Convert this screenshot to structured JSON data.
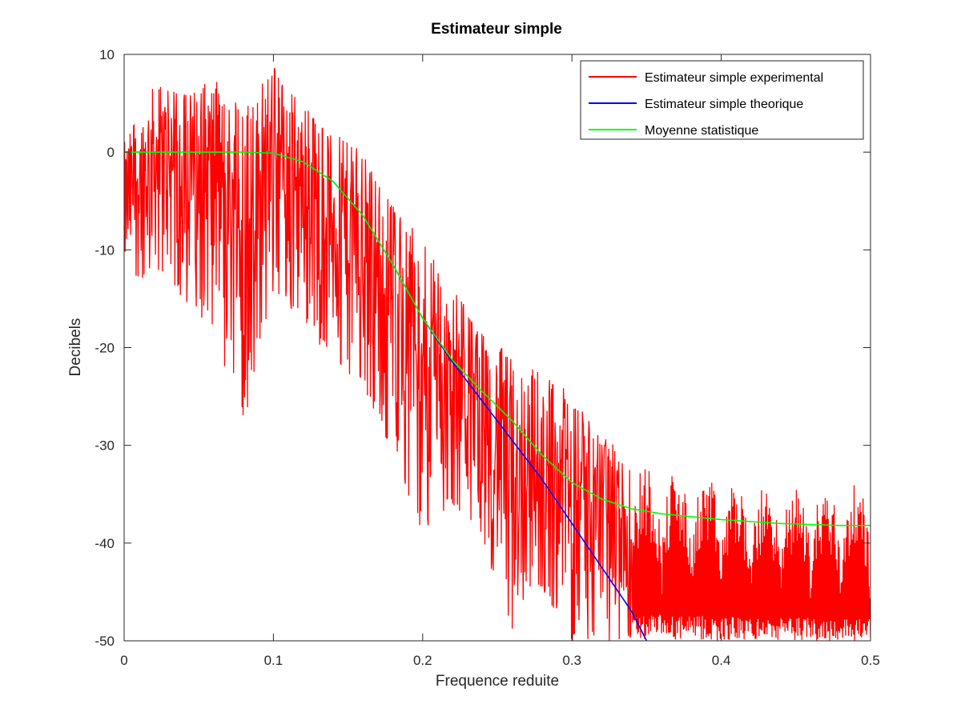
{
  "chart_data": {
    "type": "line",
    "title": "Estimateur simple",
    "xlabel": "Frequence reduite",
    "ylabel": "Decibels",
    "xlim": [
      0,
      0.5
    ],
    "ylim": [
      -50,
      10
    ],
    "xticks": [
      0,
      0.1,
      0.2,
      0.3,
      0.4,
      0.5
    ],
    "xtick_labels": [
      "0",
      "0.1",
      "0.2",
      "0.3",
      "0.4",
      "0.5"
    ],
    "yticks": [
      10,
      0,
      -10,
      -20,
      -30,
      -40,
      -50
    ],
    "ytick_labels": [
      "10",
      "0",
      "-10",
      "-20",
      "-30",
      "-40",
      "-50"
    ],
    "grid": false,
    "legend_position": "top-right",
    "series": [
      {
        "name": "Estimateur simple experimental",
        "color": "#ff0000",
        "style": "noisy",
        "note_values": "dense periodogram; mean level approx. follows the statistical mean curve",
        "x": [
          0,
          0.02,
          0.04,
          0.06,
          0.08,
          0.1,
          0.12,
          0.14,
          0.16,
          0.18,
          0.2,
          0.22,
          0.24,
          0.26,
          0.28,
          0.3,
          0.32,
          0.34,
          0.36,
          0.38,
          0.4,
          0.42,
          0.44,
          0.46,
          0.48,
          0.5
        ],
        "y_peak": [
          1,
          7,
          6,
          8,
          4,
          9,
          5,
          2,
          0,
          -5,
          -9,
          -14,
          -18,
          -21,
          -22,
          -25,
          -29,
          -31,
          -32,
          -33,
          -33,
          -34,
          -34,
          -34,
          -34,
          -34
        ],
        "y_dip": [
          -15,
          -12,
          -15,
          -19,
          -28,
          -15,
          -17,
          -22,
          -24,
          -31,
          -39,
          -36,
          -40,
          -50,
          -45,
          -50,
          -50,
          -50,
          -50,
          -50,
          -50,
          -50,
          -50,
          -50,
          -50,
          -50
        ]
      },
      {
        "name": "Estimateur simple theorique",
        "color": "#0000ff",
        "x": [
          0,
          0.08,
          0.1,
          0.12,
          0.14,
          0.16,
          0.18,
          0.2,
          0.22,
          0.24,
          0.26,
          0.28,
          0.3,
          0.32,
          0.34,
          0.35
        ],
        "y": [
          0,
          0,
          -0.1,
          -1,
          -3,
          -6.5,
          -11.5,
          -17,
          -21.5,
          -25.5,
          -29.5,
          -33.5,
          -38,
          -42.5,
          -47,
          -50
        ]
      },
      {
        "name": "Moyenne statistique",
        "color": "#00ff00",
        "x": [
          0,
          0.08,
          0.1,
          0.12,
          0.14,
          0.16,
          0.18,
          0.2,
          0.22,
          0.24,
          0.26,
          0.28,
          0.3,
          0.32,
          0.34,
          0.36,
          0.38,
          0.4,
          0.42,
          0.44,
          0.46,
          0.48,
          0.5
        ],
        "y": [
          0,
          0,
          -0.1,
          -1,
          -3,
          -6.5,
          -11.5,
          -17,
          -21.3,
          -24.5,
          -27.5,
          -31,
          -33.8,
          -35.5,
          -36.5,
          -37,
          -37.3,
          -37.6,
          -37.8,
          -38,
          -38.1,
          -38.2,
          -38.2
        ]
      }
    ]
  }
}
